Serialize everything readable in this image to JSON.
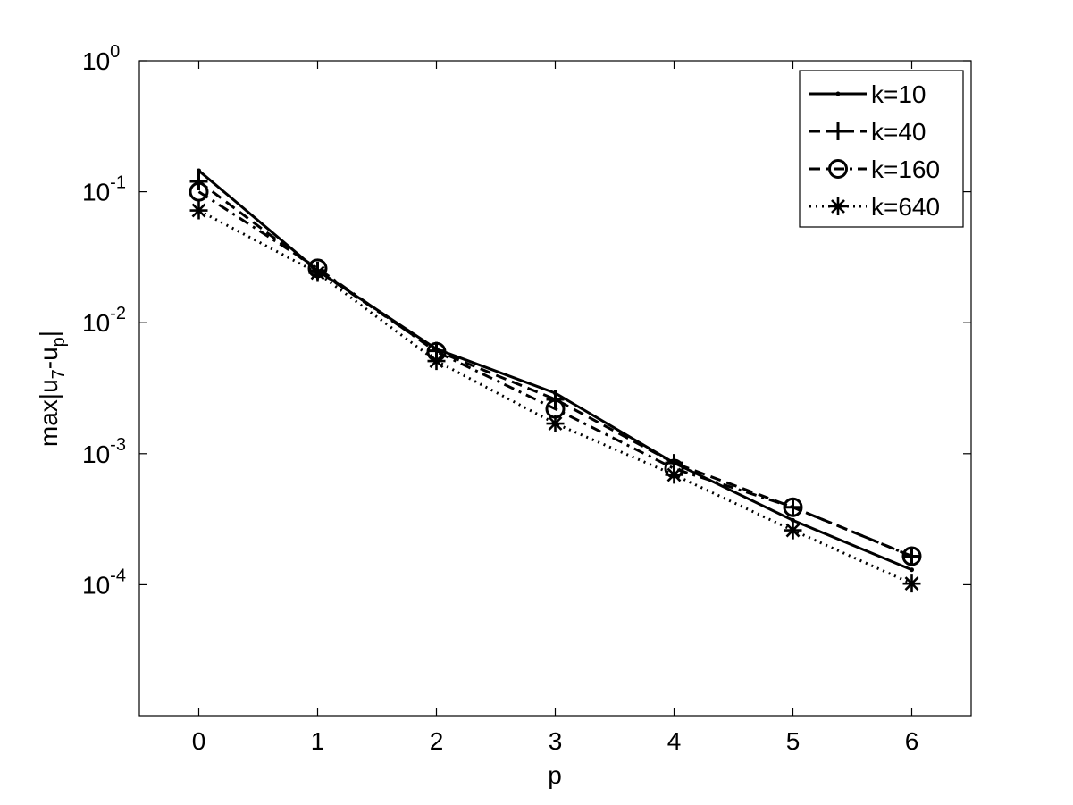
{
  "chart_data": {
    "type": "line",
    "title": "",
    "xlabel": "p",
    "ylabel": "max|u",
    "ylabel_sub1": "7",
    "ylabel_mid": "-u",
    "ylabel_sub2": "p",
    "ylabel_end": "|",
    "xlim": [
      -0.5,
      6.5
    ],
    "ylim": [
      1e-05,
      1
    ],
    "y_scale": "log",
    "grid": false,
    "legend_position": "top-right",
    "x_ticks": [
      0,
      1,
      2,
      3,
      4,
      5,
      6
    ],
    "x_tick_labels": [
      "0",
      "1",
      "2",
      "3",
      "4",
      "5",
      "6"
    ],
    "y_ticks": [
      {
        "value": 1,
        "base": "10",
        "exp": "0"
      },
      {
        "value": 0.1,
        "base": "10",
        "exp": "-1"
      },
      {
        "value": 0.01,
        "base": "10",
        "exp": "-2"
      },
      {
        "value": 0.001,
        "base": "10",
        "exp": "-3"
      },
      {
        "value": 0.0001,
        "base": "10",
        "exp": "-4"
      }
    ],
    "x": [
      0,
      1,
      2,
      3,
      4,
      5,
      6
    ],
    "series": [
      {
        "name": "k=10",
        "marker": "point",
        "dash": "solid",
        "color": "#000000",
        "values": [
          0.145,
          0.025,
          0.0063,
          0.0029,
          0.00085,
          0.00031,
          0.00013
        ]
      },
      {
        "name": "k=40",
        "marker": "plus",
        "dash": "dashed",
        "color": "#000000",
        "values": [
          0.12,
          0.025,
          0.0061,
          0.0026,
          0.00085,
          0.00039,
          0.000165
        ]
      },
      {
        "name": "k=160",
        "marker": "circle",
        "dash": "dashdot",
        "color": "#000000",
        "values": [
          0.1,
          0.026,
          0.006,
          0.0022,
          0.00077,
          0.00039,
          0.000165
        ]
      },
      {
        "name": "k=640",
        "marker": "star",
        "dash": "dotted",
        "color": "#000000",
        "values": [
          0.072,
          0.024,
          0.0051,
          0.0017,
          0.00069,
          0.00026,
          0.000102
        ]
      }
    ]
  }
}
